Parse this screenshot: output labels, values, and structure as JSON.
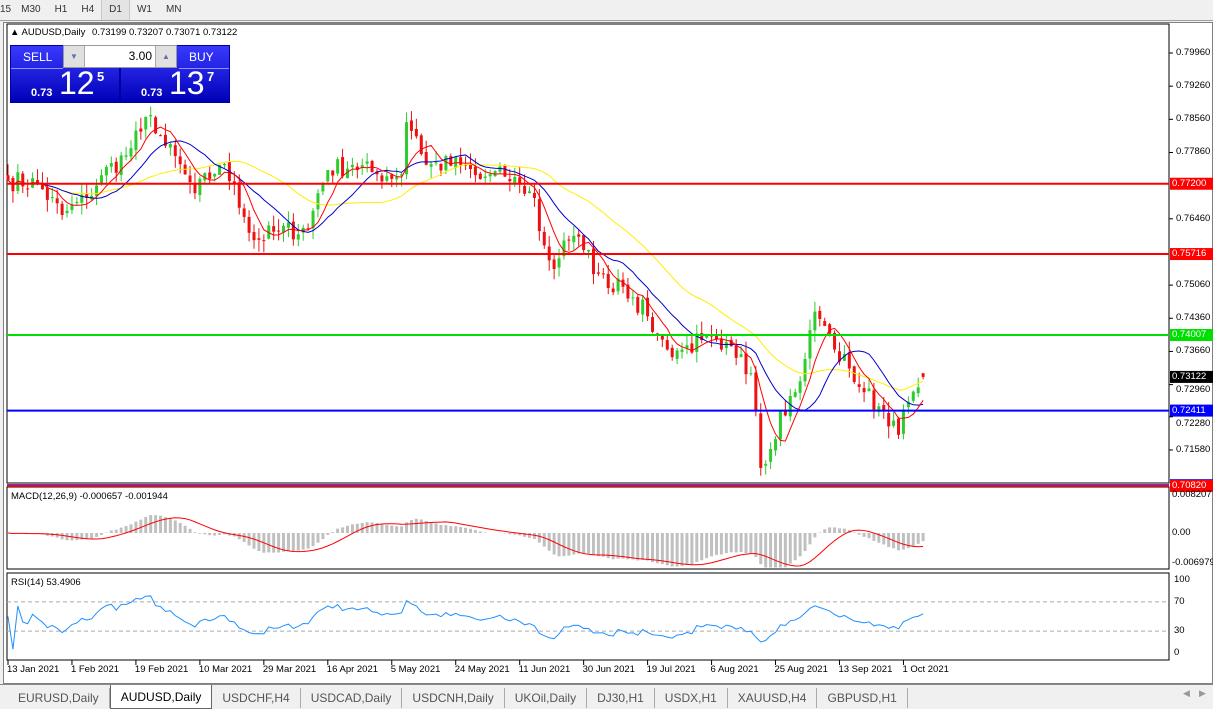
{
  "timeframes": [
    "15",
    "M30",
    "H1",
    "H4",
    "D1",
    "W1",
    "MN"
  ],
  "active_timeframe": "D1",
  "chart": {
    "symbol_title": "AUDUSD,Daily",
    "ohlc": "0.73199 0.73207 0.73071 0.73122"
  },
  "trade_panel": {
    "sell_label": "SELL",
    "buy_label": "BUY",
    "volume": "3.00",
    "sell_prefix": "0.73",
    "sell_big": "12",
    "sell_small": "5",
    "buy_prefix": "0.73",
    "buy_big": "13",
    "buy_small": "7"
  },
  "price_axis": [
    "0.79960",
    "0.79260",
    "0.78560",
    "0.77860",
    "0.76460",
    "0.75060",
    "0.74360",
    "0.73660",
    "0.72960",
    "0.72280",
    "0.71580"
  ],
  "levels": [
    {
      "price": 0.772,
      "label": "0.77200",
      "color": "#ff0000"
    },
    {
      "price": 0.75716,
      "label": "0.75716",
      "color": "#ff0000"
    },
    {
      "price": 0.74007,
      "label": "0.74007",
      "color": "#00e000"
    },
    {
      "price": 0.72411,
      "label": "0.72411",
      "color": "#0000ff"
    },
    {
      "price": 0.70836,
      "label": "",
      "color": "#0000ff"
    },
    {
      "price": 0.7082,
      "label": "0.70820",
      "color": "#ff0000"
    }
  ],
  "current_price": {
    "price": 0.73122,
    "label": "0.73122",
    "color": "#000000"
  },
  "colors": {
    "up": "#2ecc2e",
    "down": "#ee1111",
    "ma_fast": "#ff0000",
    "ma_mid": "#0000cc",
    "ma_slow": "#ffee00",
    "macd_hist": "#c0c0c0",
    "macd_signal": "#ff0000",
    "rsi": "#1e90ff"
  },
  "macd": {
    "title": "MACD(12,26,9) -0.000657 -0.001944",
    "axis": [
      "0.008207",
      "0.00",
      "-0.006979"
    ],
    "max": 0.008207,
    "min": -0.006979
  },
  "rsi": {
    "title": "RSI(14) 53.4906",
    "axis": [
      "100",
      "70",
      "30",
      "0"
    ],
    "levels": [
      70,
      30
    ]
  },
  "date_axis": [
    "13 Jan 2021",
    "1 Feb 2021",
    "19 Feb 2021",
    "10 Mar 2021",
    "29 Mar 2021",
    "16 Apr 2021",
    "5 May 2021",
    "24 May 2021",
    "11 Jun 2021",
    "30 Jun 2021",
    "19 Jul 2021",
    "6 Aug 2021",
    "25 Aug 2021",
    "13 Sep 2021",
    "1 Oct 2021"
  ],
  "chart_data": {
    "type": "candlestick",
    "bars_per_date_tick": 13,
    "approx_close": [
      [
        0,
        0.7728
      ],
      [
        6,
        0.772
      ],
      [
        11,
        0.7654
      ],
      [
        16,
        0.769
      ],
      [
        19,
        0.7738
      ],
      [
        24,
        0.778
      ],
      [
        27,
        0.783
      ],
      [
        29,
        0.7865
      ],
      [
        32,
        0.78
      ],
      [
        36,
        0.774
      ],
      [
        38,
        0.77
      ],
      [
        43,
        0.776
      ],
      [
        46,
        0.772
      ],
      [
        48,
        0.765
      ],
      [
        50,
        0.7601
      ],
      [
        55,
        0.762
      ],
      [
        61,
        0.7625
      ],
      [
        63,
        0.77
      ],
      [
        65,
        0.7749
      ],
      [
        70,
        0.776
      ],
      [
        75,
        0.774
      ],
      [
        80,
        0.774
      ],
      [
        81,
        0.785
      ],
      [
        83,
        0.782
      ],
      [
        85,
        0.776
      ],
      [
        92,
        0.776
      ],
      [
        96,
        0.773
      ],
      [
        98,
        0.774
      ],
      [
        101,
        0.7735
      ],
      [
        104,
        0.772
      ],
      [
        107,
        0.769
      ],
      [
        108,
        0.762
      ],
      [
        109,
        0.759
      ],
      [
        111,
        0.754
      ],
      [
        113,
        0.76
      ],
      [
        115,
        0.761
      ],
      [
        117,
        0.758
      ],
      [
        120,
        0.753
      ],
      [
        122,
        0.75
      ],
      [
        124,
        0.752
      ],
      [
        127,
        0.748
      ],
      [
        130,
        0.744
      ],
      [
        132,
        0.74
      ],
      [
        134,
        0.737
      ],
      [
        137,
        0.737
      ],
      [
        141,
        0.739
      ],
      [
        145,
        0.737
      ],
      [
        149,
        0.736
      ],
      [
        151,
        0.732
      ],
      [
        152,
        0.724
      ],
      [
        153,
        0.712
      ],
      [
        155,
        0.716
      ],
      [
        157,
        0.724
      ],
      [
        160,
        0.728
      ],
      [
        162,
        0.735
      ],
      [
        164,
        0.745
      ],
      [
        166,
        0.742
      ],
      [
        168,
        0.737
      ],
      [
        171,
        0.733
      ],
      [
        174,
        0.728
      ],
      [
        177,
        0.725
      ],
      [
        180,
        0.722
      ],
      [
        181,
        0.719
      ],
      [
        183,
        0.726
      ],
      [
        185,
        0.729
      ],
      [
        186,
        0.73122
      ]
    ]
  },
  "tabs": [
    "EURUSD,Daily",
    "AUDUSD,Daily",
    "USDCHF,H4",
    "USDCAD,Daily",
    "USDCNH,Daily",
    "UKOil,Daily",
    "DJ30,H1",
    "USDX,H1",
    "XAUUSD,H4",
    "GBPUSD,H1"
  ],
  "active_tab": "AUDUSD,Daily"
}
